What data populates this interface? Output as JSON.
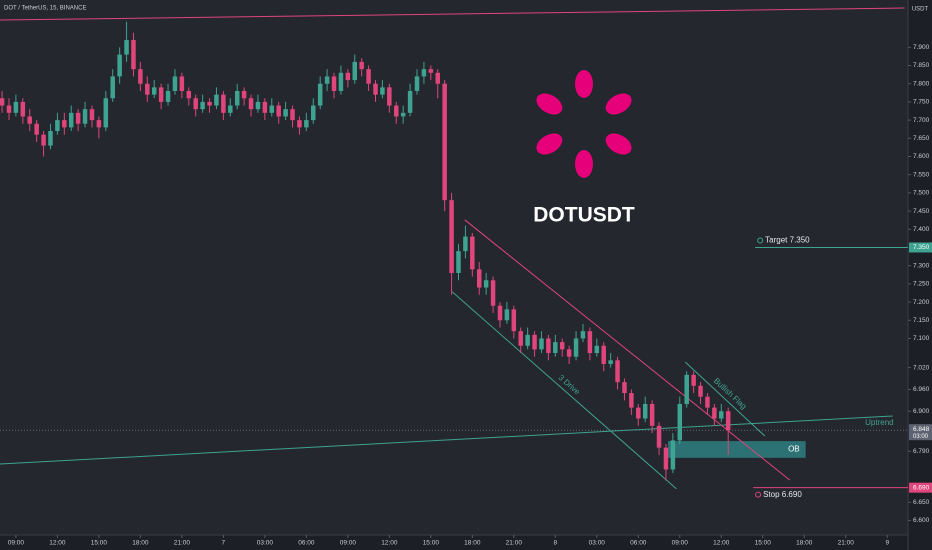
{
  "chart_data": {
    "type": "candlestick",
    "title": "DOT / TetherUS, 15, BINANCE",
    "axis_unit": "USDT",
    "symbol": "DOTUSDT",
    "colors": {
      "up": "#3fa391",
      "down": "#e0457b",
      "background": "#24272e",
      "axis": "#1c1f25",
      "text": "#c8ccd4",
      "logo": "#e6007a"
    },
    "xlim": [
      -0.3,
      131
    ],
    "ylim": [
      6.56,
      8.03
    ],
    "grid": false,
    "xticks": [
      {
        "value": 2,
        "label": "09:00"
      },
      {
        "value": 8,
        "label": "12:00"
      },
      {
        "value": 14,
        "label": "15:00"
      },
      {
        "value": 20,
        "label": "18:00"
      },
      {
        "value": 26,
        "label": "21:00"
      },
      {
        "value": 32,
        "label": "7"
      },
      {
        "value": 38,
        "label": "03:00"
      },
      {
        "value": 44,
        "label": "06:00"
      },
      {
        "value": 50,
        "label": "09:00"
      },
      {
        "value": 56,
        "label": "12:00"
      },
      {
        "value": 62,
        "label": "15:00"
      },
      {
        "value": 68,
        "label": "18:00"
      },
      {
        "value": 74,
        "label": "21:00"
      },
      {
        "value": 80,
        "label": "8"
      },
      {
        "value": 86,
        "label": "03:00"
      },
      {
        "value": 92,
        "label": "06:00"
      },
      {
        "value": 98,
        "label": "09:00"
      },
      {
        "value": 104,
        "label": "12:00"
      },
      {
        "value": 110,
        "label": "15:00"
      },
      {
        "value": 116,
        "label": "18:00"
      },
      {
        "value": 122,
        "label": "21:00"
      },
      {
        "value": 128,
        "label": "9"
      }
    ],
    "yticks": [
      {
        "value": 7.9,
        "label": "7.900"
      },
      {
        "value": 7.85,
        "label": "7.850"
      },
      {
        "value": 7.8,
        "label": "7.800"
      },
      {
        "value": 7.75,
        "label": "7.750"
      },
      {
        "value": 7.7,
        "label": "7.700"
      },
      {
        "value": 7.65,
        "label": "7.650"
      },
      {
        "value": 7.6,
        "label": "7.600"
      },
      {
        "value": 7.55,
        "label": "7.550"
      },
      {
        "value": 7.5,
        "label": "7.500"
      },
      {
        "value": 7.45,
        "label": "7.450"
      },
      {
        "value": 7.4,
        "label": "7.400"
      },
      {
        "value": 7.3,
        "label": "7.300"
      },
      {
        "value": 7.25,
        "label": "7.250"
      },
      {
        "value": 7.2,
        "label": "7.200"
      },
      {
        "value": 7.15,
        "label": "7.150"
      },
      {
        "value": 7.1,
        "label": "7.100"
      },
      {
        "value": 7.02,
        "label": "7.020"
      },
      {
        "value": 6.96,
        "label": "6.960"
      },
      {
        "value": 6.9,
        "label": "6.900"
      },
      {
        "value": 6.79,
        "label": "6.790"
      },
      {
        "value": 6.65,
        "label": "6.650"
      },
      {
        "value": 6.6,
        "label": "6.600"
      }
    ],
    "candles": [
      [
        7.76,
        7.78,
        7.72,
        7.74
      ],
      [
        7.74,
        7.76,
        7.7,
        7.72
      ],
      [
        7.72,
        7.77,
        7.71,
        7.75
      ],
      [
        7.75,
        7.76,
        7.69,
        7.71
      ],
      [
        7.71,
        7.73,
        7.67,
        7.69
      ],
      [
        7.69,
        7.7,
        7.64,
        7.66
      ],
      [
        7.66,
        7.67,
        7.6,
        7.63
      ],
      [
        7.63,
        7.69,
        7.62,
        7.67
      ],
      [
        7.67,
        7.72,
        7.66,
        7.7
      ],
      [
        7.7,
        7.72,
        7.66,
        7.68
      ],
      [
        7.68,
        7.74,
        7.67,
        7.72
      ],
      [
        7.72,
        7.73,
        7.67,
        7.69
      ],
      [
        7.69,
        7.75,
        7.68,
        7.73
      ],
      [
        7.73,
        7.74,
        7.68,
        7.7
      ],
      [
        7.7,
        7.71,
        7.65,
        7.68
      ],
      [
        7.68,
        7.78,
        7.67,
        7.76
      ],
      [
        7.76,
        7.84,
        7.75,
        7.82
      ],
      [
        7.82,
        7.9,
        7.8,
        7.88
      ],
      [
        7.88,
        7.97,
        7.86,
        7.92
      ],
      [
        7.92,
        7.94,
        7.82,
        7.84
      ],
      [
        7.84,
        7.86,
        7.78,
        7.8
      ],
      [
        7.8,
        7.82,
        7.75,
        7.77
      ],
      [
        7.77,
        7.81,
        7.76,
        7.79
      ],
      [
        7.79,
        7.8,
        7.73,
        7.75
      ],
      [
        7.75,
        7.8,
        7.74,
        7.78
      ],
      [
        7.78,
        7.84,
        7.77,
        7.82
      ],
      [
        7.82,
        7.83,
        7.76,
        7.78
      ],
      [
        7.78,
        7.79,
        7.74,
        7.76
      ],
      [
        7.76,
        7.77,
        7.71,
        7.73
      ],
      [
        7.73,
        7.77,
        7.72,
        7.75
      ],
      [
        7.75,
        7.76,
        7.72,
        7.74
      ],
      [
        7.74,
        7.79,
        7.73,
        7.77
      ],
      [
        7.77,
        7.78,
        7.7,
        7.72
      ],
      [
        7.72,
        7.76,
        7.71,
        7.74
      ],
      [
        7.74,
        7.8,
        7.73,
        7.78
      ],
      [
        7.78,
        7.79,
        7.74,
        7.76
      ],
      [
        7.76,
        7.77,
        7.71,
        7.73
      ],
      [
        7.73,
        7.77,
        7.72,
        7.75
      ],
      [
        7.75,
        7.76,
        7.7,
        7.72
      ],
      [
        7.72,
        7.76,
        7.71,
        7.74
      ],
      [
        7.74,
        7.75,
        7.69,
        7.71
      ],
      [
        7.71,
        7.75,
        7.7,
        7.73
      ],
      [
        7.73,
        7.74,
        7.68,
        7.7
      ],
      [
        7.7,
        7.71,
        7.66,
        7.68
      ],
      [
        7.68,
        7.72,
        7.67,
        7.7
      ],
      [
        7.7,
        7.76,
        7.69,
        7.74
      ],
      [
        7.74,
        7.82,
        7.73,
        7.8
      ],
      [
        7.8,
        7.84,
        7.78,
        7.82
      ],
      [
        7.82,
        7.83,
        7.76,
        7.78
      ],
      [
        7.78,
        7.85,
        7.77,
        7.83
      ],
      [
        7.83,
        7.84,
        7.79,
        7.81
      ],
      [
        7.81,
        7.88,
        7.8,
        7.86
      ],
      [
        7.86,
        7.87,
        7.82,
        7.84
      ],
      [
        7.84,
        7.85,
        7.78,
        7.8
      ],
      [
        7.8,
        7.81,
        7.75,
        7.77
      ],
      [
        7.77,
        7.81,
        7.76,
        7.79
      ],
      [
        7.79,
        7.8,
        7.72,
        7.74
      ],
      [
        7.74,
        7.75,
        7.69,
        7.71
      ],
      [
        7.71,
        7.74,
        7.69,
        7.72
      ],
      [
        7.72,
        7.8,
        7.71,
        7.78
      ],
      [
        7.78,
        7.84,
        7.77,
        7.82
      ],
      [
        7.82,
        7.86,
        7.8,
        7.84
      ],
      [
        7.84,
        7.85,
        7.81,
        7.83
      ],
      [
        7.83,
        7.84,
        7.76,
        7.8
      ],
      [
        7.8,
        7.81,
        7.45,
        7.48
      ],
      [
        7.48,
        7.5,
        7.22,
        7.28
      ],
      [
        7.28,
        7.36,
        7.26,
        7.34
      ],
      [
        7.34,
        7.41,
        7.32,
        7.38
      ],
      [
        7.38,
        7.39,
        7.27,
        7.29
      ],
      [
        7.29,
        7.31,
        7.22,
        7.24
      ],
      [
        7.24,
        7.28,
        7.22,
        7.26
      ],
      [
        7.26,
        7.27,
        7.17,
        7.19
      ],
      [
        7.19,
        7.2,
        7.13,
        7.15
      ],
      [
        7.15,
        7.2,
        7.14,
        7.18
      ],
      [
        7.18,
        7.19,
        7.1,
        7.12
      ],
      [
        7.12,
        7.13,
        7.06,
        7.08
      ],
      [
        7.08,
        7.13,
        7.07,
        7.11
      ],
      [
        7.11,
        7.12,
        7.05,
        7.07
      ],
      [
        7.07,
        7.12,
        7.06,
        7.1
      ],
      [
        7.1,
        7.11,
        7.04,
        7.06
      ],
      [
        7.06,
        7.11,
        7.05,
        7.09
      ],
      [
        7.09,
        7.1,
        7.05,
        7.07
      ],
      [
        7.07,
        7.08,
        7.03,
        7.05
      ],
      [
        7.05,
        7.12,
        7.04,
        7.1
      ],
      [
        7.1,
        7.14,
        7.09,
        7.12
      ],
      [
        7.12,
        7.13,
        7.04,
        7.06
      ],
      [
        7.06,
        7.1,
        7.05,
        7.08
      ],
      [
        7.08,
        7.09,
        7.01,
        7.03
      ],
      [
        7.03,
        7.06,
        7.02,
        7.04
      ],
      [
        7.04,
        7.05,
        6.96,
        6.98
      ],
      [
        6.98,
        6.99,
        6.93,
        6.95
      ],
      [
        6.95,
        6.96,
        6.89,
        6.91
      ],
      [
        6.91,
        6.92,
        6.86,
        6.88
      ],
      [
        6.88,
        6.94,
        6.87,
        6.92
      ],
      [
        6.92,
        6.93,
        6.84,
        6.86
      ],
      [
        6.86,
        6.87,
        6.78,
        6.8
      ],
      [
        6.8,
        6.81,
        6.71,
        6.74
      ],
      [
        6.74,
        6.84,
        6.73,
        6.82
      ],
      [
        6.82,
        6.94,
        6.81,
        6.92
      ],
      [
        6.92,
        7.01,
        6.91,
        7.0
      ],
      [
        7.0,
        7.01,
        6.95,
        6.97
      ],
      [
        6.97,
        6.98,
        6.92,
        6.94
      ],
      [
        6.94,
        6.95,
        6.89,
        6.91
      ],
      [
        6.91,
        6.92,
        6.86,
        6.88
      ],
      [
        6.88,
        6.92,
        6.87,
        6.9
      ],
      [
        6.9,
        6.91,
        6.78,
        6.848
      ]
    ],
    "last_price": {
      "value": 6.848,
      "label": "6.848",
      "countdown": "03:00"
    },
    "target": {
      "text": "Target 7.350",
      "price": {
        "value": 7.35,
        "label": "7.350"
      },
      "from": 108.9,
      "color": "#3fa391"
    },
    "stop": {
      "text": "Stop 6.690",
      "price": {
        "value": 6.69,
        "label": "6.690"
      },
      "from": 108.6,
      "color": "#e0457b"
    },
    "zone": {
      "label": "OB",
      "x": [
        96.3,
        116.2
      ],
      "y": [
        6.772,
        6.818
      ],
      "color": "#2e7f80"
    },
    "trendlines": [
      {
        "color": "#e0457b",
        "points": [
          [
            -0.3,
            7.975
          ],
          [
            130.5,
            8.008
          ]
        ]
      },
      {
        "color": "#3fa391",
        "label": "Uptrend",
        "points": [
          [
            -0.3,
            6.755
          ],
          [
            128.8,
            6.887
          ]
        ]
      },
      {
        "color": "#e0457b",
        "points": [
          [
            66.9,
            7.426
          ],
          [
            113.9,
            6.711
          ]
        ]
      },
      {
        "color": "#3fa391",
        "label": "3 Drive",
        "points": [
          [
            65.1,
            7.228
          ],
          [
            97.5,
            6.687
          ]
        ]
      },
      {
        "color": "#3fa391",
        "label": "Bullish Flag",
        "points": [
          [
            98.8,
            7.035
          ],
          [
            110.3,
            6.832
          ]
        ]
      }
    ]
  }
}
